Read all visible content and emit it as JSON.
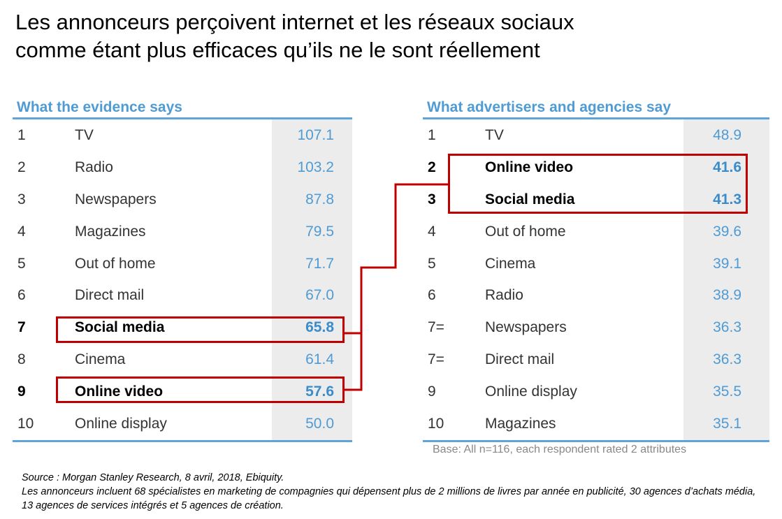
{
  "title": {
    "line1": "Les annonceurs perçoivent internet et les réseaux sociaux",
    "line2": "comme étant plus efficaces qu’ils ne le sont réellement"
  },
  "left_table": {
    "heading": "What the evidence says",
    "rows": [
      {
        "rank": "1",
        "label": "TV",
        "value": "107.1"
      },
      {
        "rank": "2",
        "label": "Radio",
        "value": "103.2"
      },
      {
        "rank": "3",
        "label": "Newspapers",
        "value": "87.8"
      },
      {
        "rank": "4",
        "label": "Magazines",
        "value": "79.5"
      },
      {
        "rank": "5",
        "label": "Out of home",
        "value": "71.7"
      },
      {
        "rank": "6",
        "label": "Direct mail",
        "value": "67.0"
      },
      {
        "rank": "7",
        "label": "Social media",
        "value": "65.8"
      },
      {
        "rank": "8",
        "label": "Cinema",
        "value": "61.4"
      },
      {
        "rank": "9",
        "label": "Online video",
        "value": "57.6"
      },
      {
        "rank": "10",
        "label": "Online display",
        "value": "50.0"
      }
    ]
  },
  "right_table": {
    "heading": "What advertisers and agencies say",
    "rows": [
      {
        "rank": "1",
        "label": "TV",
        "value": "48.9"
      },
      {
        "rank": "2",
        "label": "Online video",
        "value": "41.6"
      },
      {
        "rank": "3",
        "label": "Social media",
        "value": "41.3"
      },
      {
        "rank": "4",
        "label": "Out of home",
        "value": "39.6"
      },
      {
        "rank": "5",
        "label": "Cinema",
        "value": "39.1"
      },
      {
        "rank": "6",
        "label": "Radio",
        "value": "38.9"
      },
      {
        "rank": "7=",
        "label": "Newspapers",
        "value": "36.3"
      },
      {
        "rank": "7=",
        "label": "Direct mail",
        "value": "36.3"
      },
      {
        "rank": "9",
        "label": "Online display",
        "value": "35.5"
      },
      {
        "rank": "10",
        "label": "Magazines",
        "value": "35.1"
      }
    ],
    "base_note": "Base: All n=116, each respondent rated 2 attributes"
  },
  "source": {
    "line1": "Source : Morgan Stanley Research, 8 avril, 2018, Ebiquity.",
    "line2": "Les annonceurs incluent 68 spécialistes en marketing de compagnies qui dépensent plus de 2 millions de livres par année en publicité, 30 agences d’achats média, 13 agences de services intégrés et 5 agences de création."
  },
  "colors": {
    "accent_blue": "#4f9bd4",
    "highlight_red": "#c00000",
    "value_column_bg": "#ececec"
  }
}
